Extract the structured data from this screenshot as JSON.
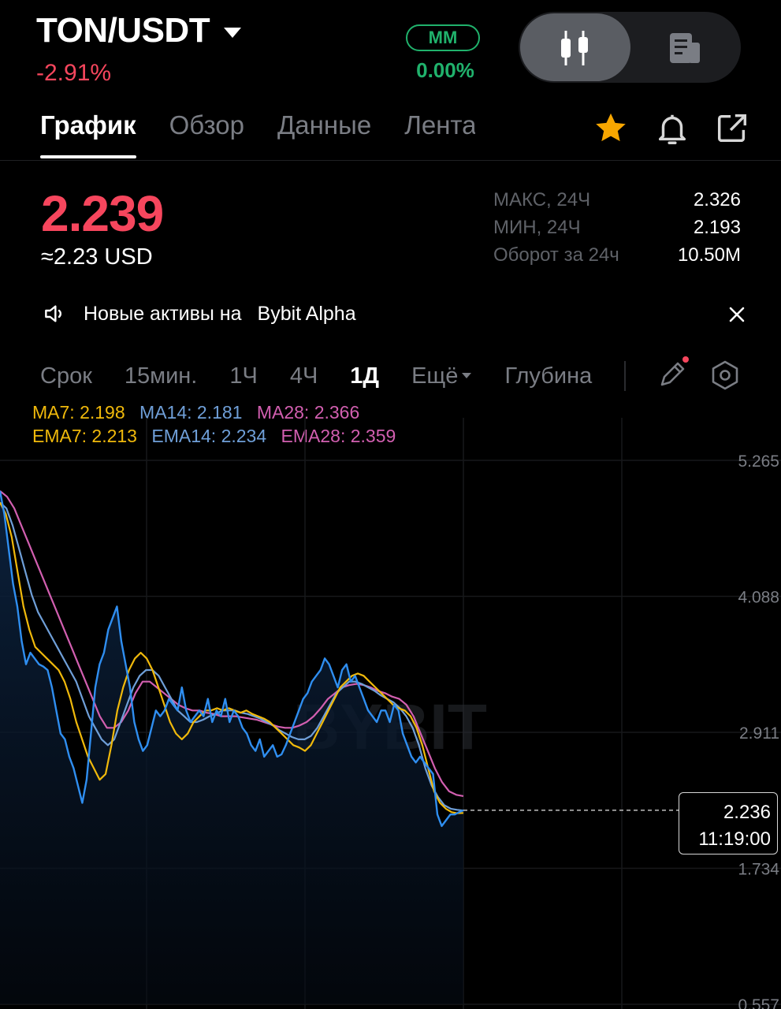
{
  "header": {
    "pair": "TON/USDT",
    "change": "-2.91%",
    "mm_label": "MM",
    "mm_value": "0.00%"
  },
  "tabs": [
    "График",
    "Обзор",
    "Данные",
    "Лента"
  ],
  "ticker": {
    "price": "2.239",
    "usd_approx": "≈2.23 USD",
    "stats": [
      {
        "label": "МАКС, 24Ч",
        "value": "2.326"
      },
      {
        "label": "МИН, 24Ч",
        "value": "2.193"
      },
      {
        "label": "Оборот за 24ч",
        "value": "10.50M"
      }
    ]
  },
  "notice": {
    "text": "Новые активы на",
    "link": "Bybit Alpha"
  },
  "timeframes": {
    "items": [
      "Срок",
      "15мин.",
      "1Ч",
      "4Ч",
      "1Д",
      "Ещё",
      "Глубина"
    ],
    "active": "1Д"
  },
  "indicators": {
    "ma": [
      {
        "label": "MA7: 2.198",
        "color": "#f0b90b"
      },
      {
        "label": "MA14: 2.181",
        "color": "#6f9fd8"
      },
      {
        "label": "MA28: 2.366",
        "color": "#d25fb0"
      }
    ],
    "ema": [
      {
        "label": "EMA7: 2.213",
        "color": "#f0b90b"
      },
      {
        "label": "EMA14: 2.234",
        "color": "#6f9fd8"
      },
      {
        "label": "EMA28: 2.359",
        "color": "#d25fb0"
      }
    ]
  },
  "colors": {
    "up": "#20b26c",
    "down": "#f6465d",
    "accent": "#f7a600",
    "price_line": "#2f8ef0"
  },
  "icons": [
    "dropdown-caret-icon",
    "candlestick-icon",
    "news-icon",
    "star-icon",
    "bell-icon",
    "share-icon",
    "speaker-icon",
    "close-icon",
    "pencil-icon",
    "settings-hexagon-icon"
  ],
  "chart_data": {
    "type": "line",
    "y_ticks": [
      "5.265",
      "4.088",
      "2.911",
      "1.734",
      "0.557"
    ],
    "ylim": [
      0.557,
      5.265
    ],
    "last_price": "2.236",
    "last_time": "11:19:00",
    "watermark": "BYBIT",
    "series": [
      {
        "name": "",
        "values": [
          5.0,
          4.8,
          4.5,
          4.2,
          4.0,
          3.7,
          3.5,
          3.6,
          3.55,
          3.5,
          3.48,
          3.45,
          3.3,
          3.1,
          2.9,
          2.85,
          2.7,
          2.6,
          2.45,
          2.3,
          2.5,
          2.9,
          3.3,
          3.5,
          3.6,
          3.8,
          3.9,
          4.0,
          3.7,
          3.5,
          3.3,
          3.0,
          2.85,
          2.75,
          2.8,
          2.95,
          3.1,
          3.05,
          3.1,
          3.2,
          3.15,
          3.1,
          3.3,
          3.1,
          3.0,
          3.05,
          3.1,
          3.05,
          3.2,
          3.0,
          3.1,
          3.05,
          3.2,
          3.0,
          3.1,
          3.05,
          2.95,
          2.9,
          2.8,
          2.75,
          2.85,
          2.7,
          2.75,
          2.8,
          2.7,
          2.72,
          2.8,
          2.9,
          3.0,
          3.1,
          3.2,
          3.25,
          3.35,
          3.4,
          3.45,
          3.55,
          3.5,
          3.4,
          3.3,
          3.45,
          3.5,
          3.35,
          3.4,
          3.3,
          3.2,
          3.1,
          3.05,
          3.0,
          3.1,
          3.1,
          3.0,
          3.15,
          3.1,
          2.9,
          2.8,
          2.7,
          2.65,
          2.7,
          2.65,
          2.6,
          2.55,
          2.2,
          2.1,
          2.15,
          2.2,
          2.2,
          2.22,
          2.236
        ]
      },
      {
        "name": "",
        "values": [
          4.9,
          4.8,
          4.6,
          4.3,
          4.0,
          3.8,
          3.65,
          3.6,
          3.55,
          3.5,
          3.45,
          3.35,
          3.2,
          3.0,
          2.85,
          2.7,
          2.6,
          2.5,
          2.55,
          2.8,
          3.1,
          3.3,
          3.45,
          3.55,
          3.6,
          3.55,
          3.45,
          3.3,
          3.15,
          3.0,
          2.9,
          2.85,
          2.9,
          3.0,
          3.05,
          3.1,
          3.1,
          3.12,
          3.1,
          3.12,
          3.1,
          3.08,
          3.1,
          3.07,
          3.05,
          3.03,
          3.0,
          2.95,
          2.9,
          2.85,
          2.8,
          2.78,
          2.75,
          2.8,
          2.9,
          3.0,
          3.1,
          3.2,
          3.3,
          3.35,
          3.4,
          3.42,
          3.4,
          3.35,
          3.3,
          3.25,
          3.2,
          3.15,
          3.12,
          3.1,
          3.05,
          2.95,
          2.8,
          2.6,
          2.4,
          2.3,
          2.25,
          2.22,
          2.21,
          2.213
        ]
      },
      {
        "name": "",
        "values": [
          4.9,
          4.85,
          4.7,
          4.5,
          4.3,
          4.1,
          3.95,
          3.85,
          3.75,
          3.65,
          3.55,
          3.45,
          3.35,
          3.2,
          3.05,
          2.95,
          2.85,
          2.8,
          2.85,
          3.0,
          3.15,
          3.3,
          3.4,
          3.45,
          3.45,
          3.4,
          3.3,
          3.2,
          3.1,
          3.05,
          3.0,
          3.0,
          3.02,
          3.05,
          3.07,
          3.1,
          3.1,
          3.1,
          3.08,
          3.07,
          3.05,
          3.03,
          3.0,
          2.97,
          2.93,
          2.9,
          2.87,
          2.85,
          2.85,
          2.88,
          2.95,
          3.05,
          3.15,
          3.25,
          3.3,
          3.35,
          3.35,
          3.33,
          3.3,
          3.27,
          3.23,
          3.2,
          3.17,
          3.12,
          3.05,
          2.95,
          2.8,
          2.6,
          2.45,
          2.35,
          2.28,
          2.25,
          2.24,
          2.234
        ]
      },
      {
        "name": "",
        "values": [
          5.0,
          4.95,
          4.85,
          4.7,
          4.55,
          4.4,
          4.25,
          4.1,
          3.95,
          3.8,
          3.65,
          3.5,
          3.35,
          3.2,
          3.05,
          2.95,
          2.95,
          3.0,
          3.1,
          3.25,
          3.35,
          3.35,
          3.3,
          3.25,
          3.2,
          3.15,
          3.12,
          3.1,
          3.1,
          3.08,
          3.07,
          3.05,
          3.05,
          3.05,
          3.04,
          3.03,
          3.02,
          3.0,
          2.98,
          2.96,
          2.95,
          2.95,
          2.97,
          3.0,
          3.05,
          3.12,
          3.2,
          3.25,
          3.3,
          3.32,
          3.33,
          3.32,
          3.3,
          3.27,
          3.25,
          3.22,
          3.2,
          3.15,
          3.05,
          2.9,
          2.75,
          2.6,
          2.48,
          2.4,
          2.37,
          2.359
        ]
      }
    ]
  }
}
